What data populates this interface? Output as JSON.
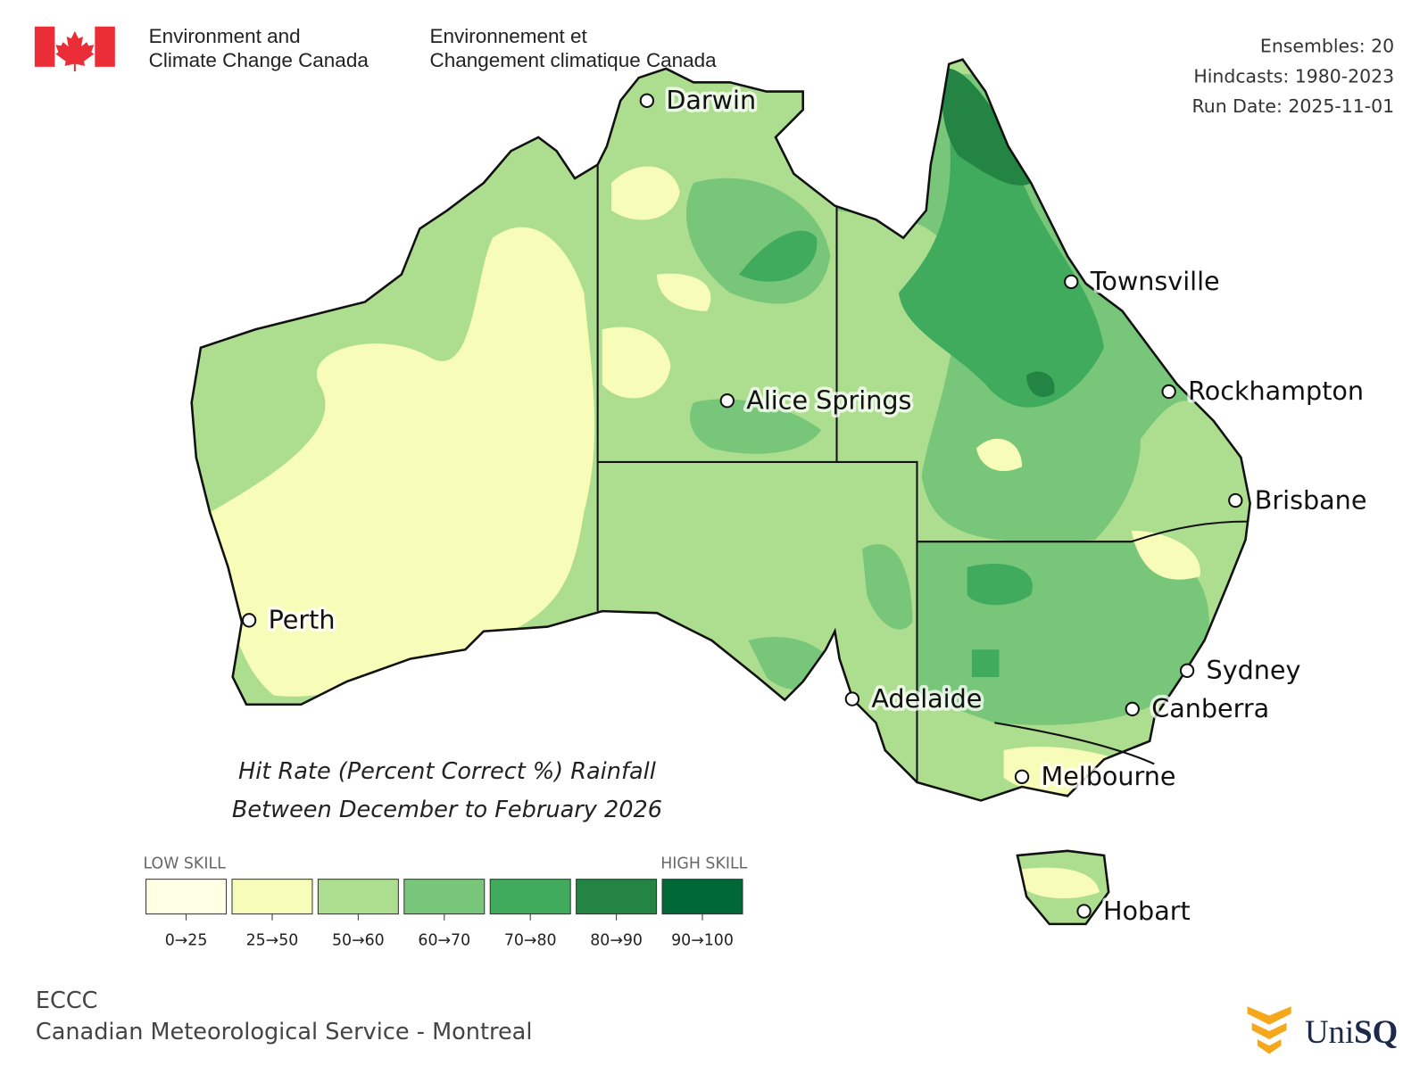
{
  "header": {
    "agency_en": [
      "Environment and",
      "Climate Change Canada"
    ],
    "agency_fr": [
      "Environnement et",
      "Changement climatique Canada"
    ]
  },
  "info": [
    "Ensembles: 20",
    "Hindcasts: 1980-2023",
    "Run Date: 2025-11-01"
  ],
  "cities": [
    "Darwin",
    "Townsville",
    "Alice Springs",
    "Rockhampton",
    "Brisbane",
    "Perth",
    "Sydney",
    "Adelaide",
    "Canberra",
    "Melbourne",
    "Hobart"
  ],
  "title": [
    "Hit Rate (Percent Correct %) Rainfall",
    "Between December to February 2026"
  ],
  "legend": {
    "low": "LOW SKILL",
    "high": "HIGH SKILL",
    "items": [
      {
        "label": "0→25",
        "color": "#ffffe5"
      },
      {
        "label": "25→50",
        "color": "#f7fcb9"
      },
      {
        "label": "50→60",
        "color": "#addd8e"
      },
      {
        "label": "60→70",
        "color": "#78c679"
      },
      {
        "label": "70→80",
        "color": "#41ab5d"
      },
      {
        "label": "80→90",
        "color": "#238443"
      },
      {
        "label": "90→100",
        "color": "#006837"
      }
    ]
  },
  "footer": [
    "ECCC",
    "Canadian Meteorological Service - Montreal"
  ],
  "logo": [
    "Uni",
    "SQ"
  ]
}
